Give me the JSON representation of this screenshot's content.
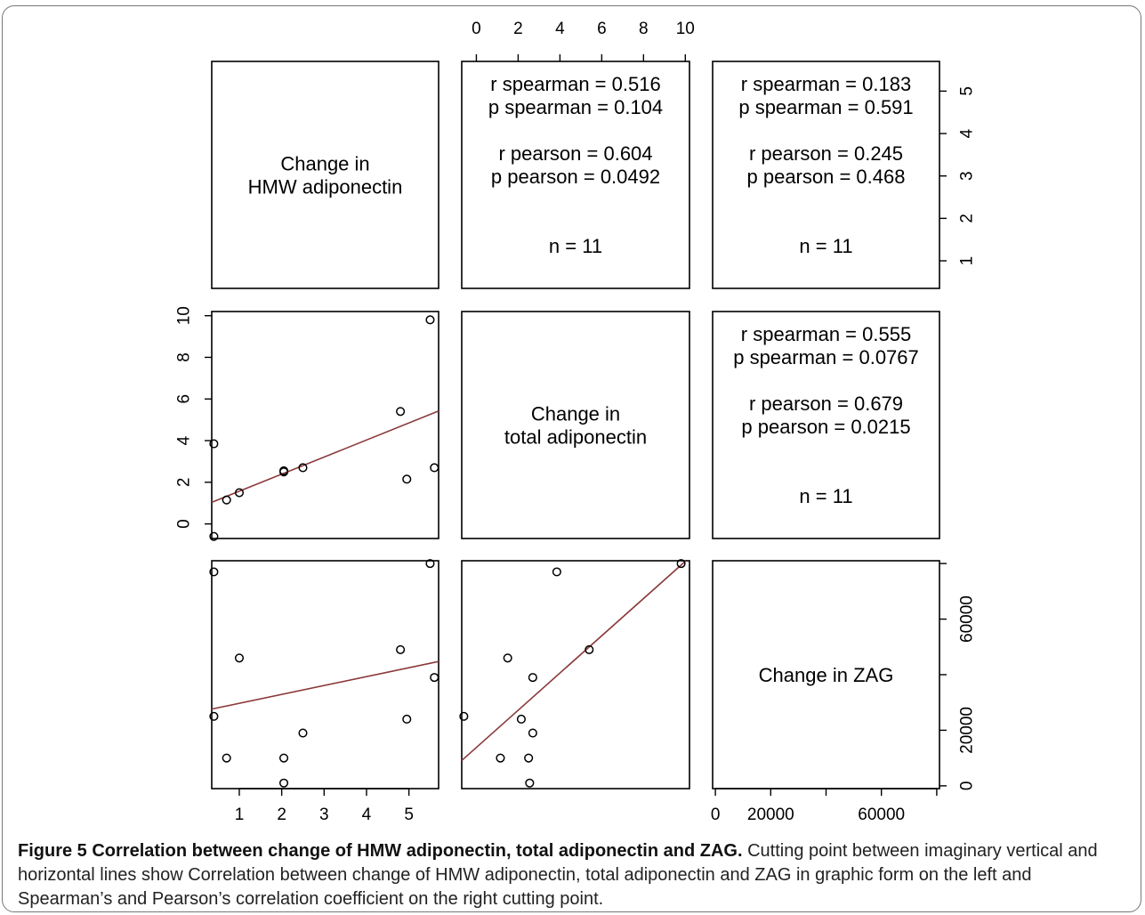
{
  "figure": {
    "label": "Figure 5",
    "title": "Correlation between change of HMW adiponectin, total adiponectin and ZAG.",
    "caption": "Cutting point between imaginary vertical and horizontal lines show Correlation between change of HMW adiponectin, total adiponectin and ZAG in graphic form on the left and Spearman’s and Pearson’s correlation coefficient on the right cutting point."
  },
  "chart_data": {
    "type": "scatter",
    "variables": [
      {
        "key": "hmw",
        "label_lines": [
          "Change in",
          "HMW adiponectin"
        ],
        "range": [
          0.35,
          5.7
        ],
        "ticks": [
          1,
          2,
          3,
          4,
          5
        ]
      },
      {
        "key": "total",
        "label_lines": [
          "Change in",
          "total adiponectin"
        ],
        "range": [
          -0.7,
          10.2
        ],
        "ticks": [
          0,
          2,
          4,
          6,
          8,
          10
        ]
      },
      {
        "key": "zag",
        "label_lines": [
          "Change in ZAG"
        ],
        "range": [
          -1000,
          81000
        ],
        "ticks": [
          0,
          20000,
          40000,
          60000,
          80000
        ],
        "tick_labels": [
          "0",
          "20000",
          "",
          "60000",
          ""
        ]
      }
    ],
    "observations": [
      {
        "hmw": 0.4,
        "total": 3.85,
        "zag": 77000
      },
      {
        "hmw": 0.4,
        "total": -0.6,
        "zag": 25000
      },
      {
        "hmw": 0.7,
        "total": 1.15,
        "zag": 10000
      },
      {
        "hmw": 1.0,
        "total": 1.5,
        "zag": 46000
      },
      {
        "hmw": 2.05,
        "total": 2.5,
        "zag": 10000
      },
      {
        "hmw": 2.05,
        "total": 2.55,
        "zag": 1000
      },
      {
        "hmw": 2.5,
        "total": 2.7,
        "zag": 19000
      },
      {
        "hmw": 4.8,
        "total": 5.4,
        "zag": 49000
      },
      {
        "hmw": 5.5,
        "total": 9.8,
        "zag": 80000
      },
      {
        "hmw": 5.6,
        "total": 2.7,
        "zag": 39000
      },
      {
        "hmw": 4.95,
        "total": 2.15,
        "zag": 24000
      }
    ],
    "fits": [
      {
        "x": "hmw",
        "y": "total",
        "intercept": 0.75,
        "slope": 0.82
      },
      {
        "x": "hmw",
        "y": "zag",
        "intercept": 26500,
        "slope": 3200
      },
      {
        "x": "total",
        "y": "zag",
        "intercept": 13800,
        "slope": 6700
      }
    ],
    "stats": [
      {
        "x": "total",
        "y": "hmw",
        "lines": [
          "r spearman = 0.516",
          "p spearman = 0.104",
          "",
          "r pearson = 0.604",
          "p pearson = 0.0492",
          "",
          "",
          "n = 11"
        ]
      },
      {
        "x": "zag",
        "y": "hmw",
        "lines": [
          "r spearman = 0.183",
          "p spearman = 0.591",
          "",
          "r pearson = 0.245",
          "p pearson = 0.468",
          "",
          "",
          "n = 11"
        ]
      },
      {
        "x": "zag",
        "y": "total",
        "lines": [
          "r spearman = 0.555",
          "p spearman = 0.0767",
          "",
          "r pearson = 0.679",
          "p pearson = 0.0215",
          "",
          "",
          "n = 11"
        ]
      }
    ],
    "colors": {
      "points": "#000000",
      "fit_line": "#8b3a3a",
      "panel_border": "#000000"
    },
    "grid": false
  }
}
